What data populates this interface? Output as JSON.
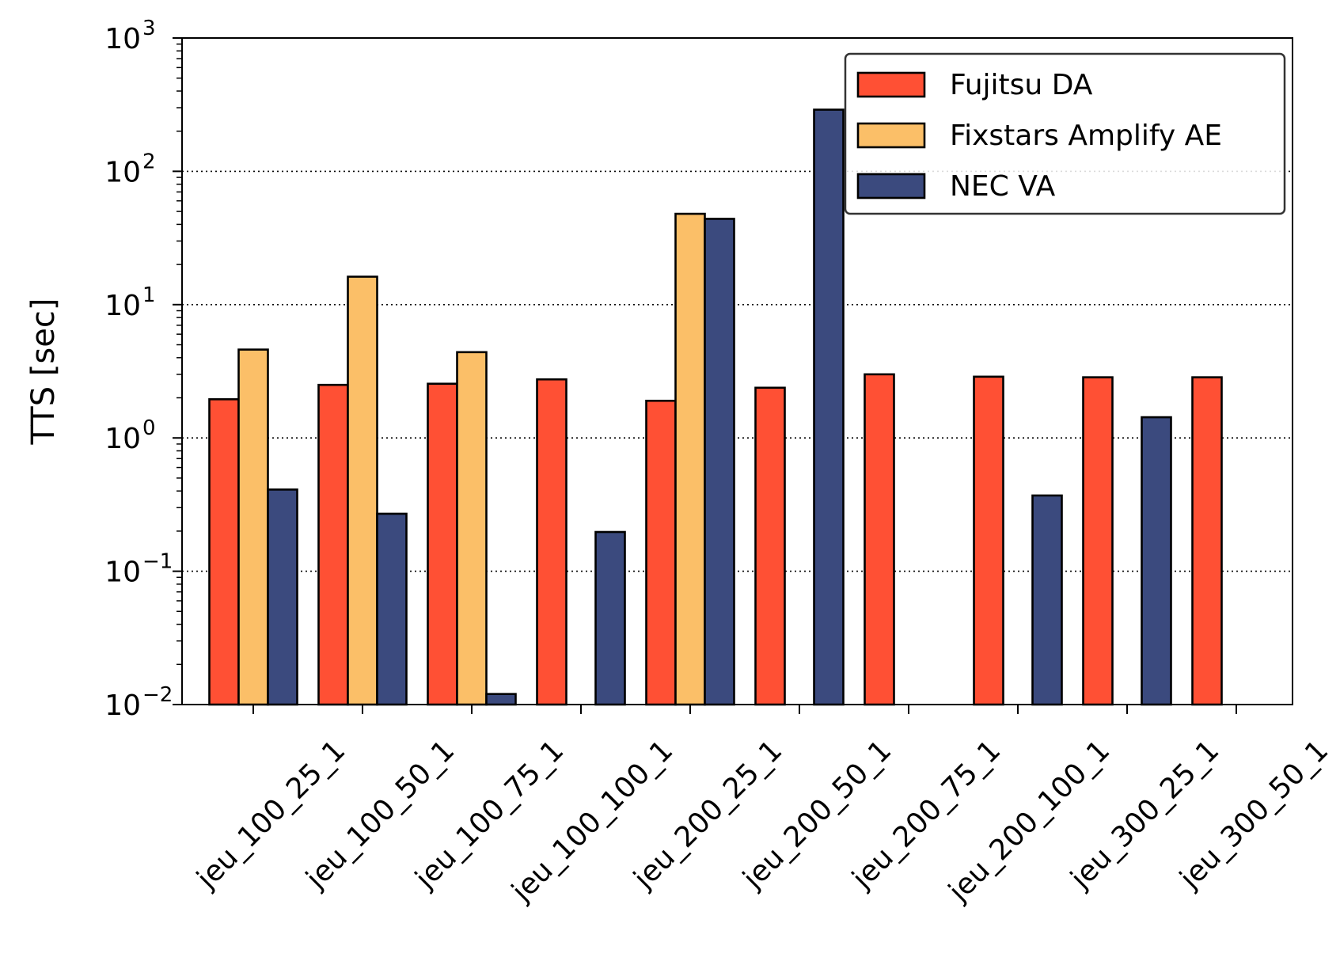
{
  "chart_data": {
    "type": "bar",
    "ylabel": "TTS [sec]",
    "yscale": "log",
    "ylim": [
      0.01,
      1000
    ],
    "ytick_base": "10",
    "ytick_exponents": [
      "−2",
      "−1",
      "0",
      "1",
      "2",
      "3"
    ],
    "grid": "y major, dotted",
    "legend_position": "top-right",
    "categories": [
      "jeu_100_25_1",
      "jeu_100_50_1",
      "jeu_100_75_1",
      "jeu_100_100_1",
      "jeu_200_25_1",
      "jeu_200_50_1",
      "jeu_200_75_1",
      "jeu_200_100_1",
      "jeu_300_25_1",
      "jeu_300_50_1"
    ],
    "series": [
      {
        "name": "Fujitsu DA",
        "color": "#ff5034",
        "values": [
          1.95,
          2.5,
          2.55,
          2.75,
          1.9,
          2.38,
          3.0,
          2.88,
          2.85,
          2.85
        ]
      },
      {
        "name": "Fixstars Amplify AE",
        "color": "#fbbf68",
        "values": [
          4.6,
          16.2,
          4.4,
          null,
          48.0,
          null,
          null,
          null,
          null,
          null
        ]
      },
      {
        "name": "NEC VA",
        "color": "#3b4a7e",
        "values": [
          0.41,
          0.27,
          0.012,
          0.197,
          44.0,
          290.0,
          null,
          0.37,
          1.43,
          null
        ]
      }
    ]
  }
}
